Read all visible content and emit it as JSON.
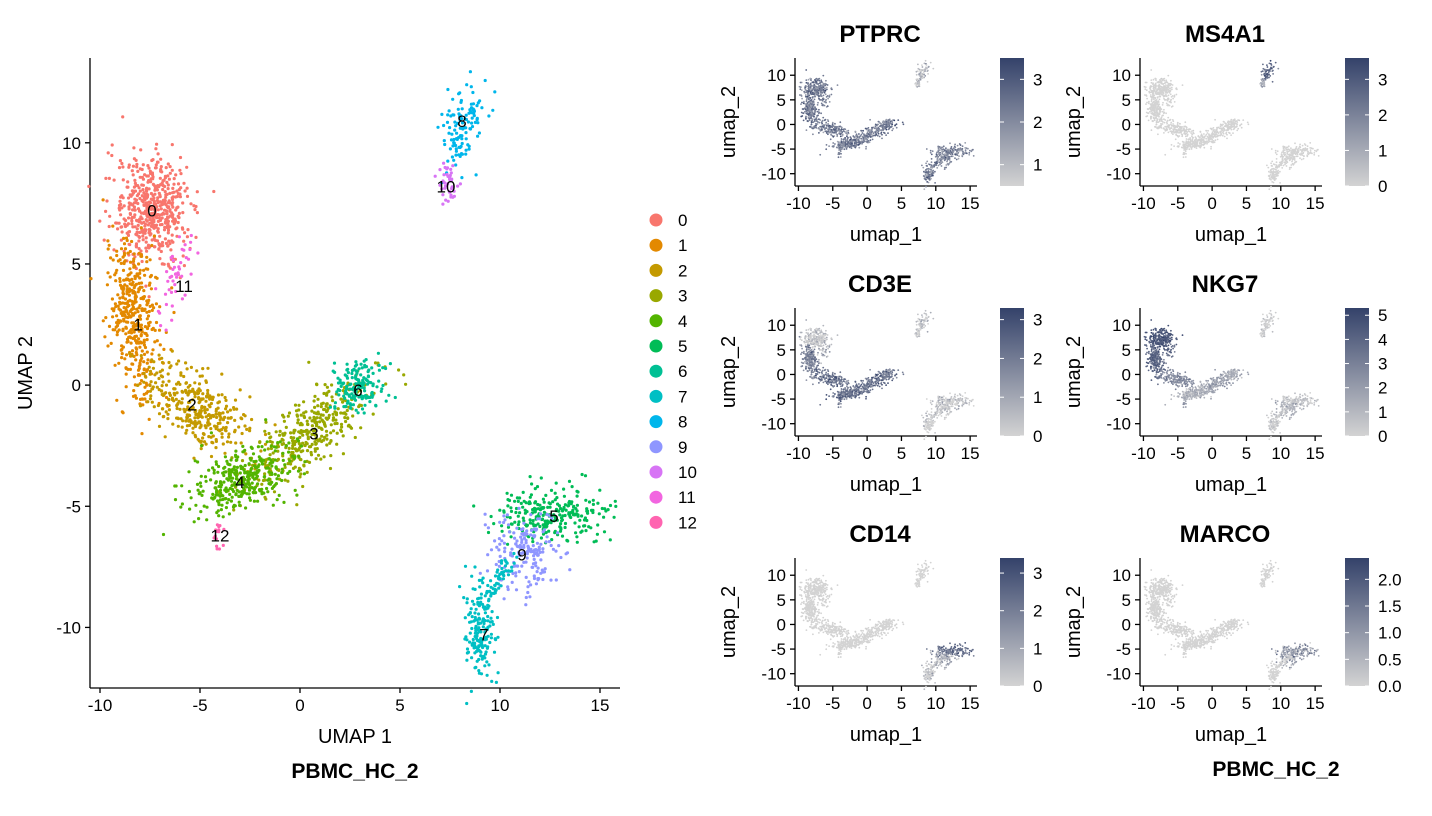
{
  "colors": {
    "low": "#d3d3d3",
    "high": "#34426a",
    "clusters": [
      "#f8766d",
      "#e38900",
      "#c49a00",
      "#99a800",
      "#53b400",
      "#00bc56",
      "#00c094",
      "#00bfc4",
      "#00b6eb",
      "#8f96ff",
      "#d774f5",
      "#f265e0",
      "#ff64b0"
    ]
  },
  "chart_data": [
    {
      "type": "scatter",
      "title": "",
      "caption": "PBMC_HC_2",
      "xlabel": "UMAP 1",
      "ylabel": "UMAP 2",
      "xlim": [
        -10.5,
        16
      ],
      "ylim": [
        -12.5,
        13.5
      ],
      "xticks": [
        -10,
        -5,
        0,
        5,
        10,
        15
      ],
      "yticks": [
        -10,
        -5,
        0,
        5,
        10
      ],
      "xtick_labels": [
        "-10",
        "-5",
        "0",
        "5",
        "10",
        "15"
      ],
      "ytick_labels": [
        "-10",
        "-5",
        "0",
        "5",
        "10"
      ],
      "legend": {
        "position": "right",
        "entries": [
          "0",
          "1",
          "2",
          "3",
          "4",
          "5",
          "6",
          "7",
          "8",
          "9",
          "10",
          "11",
          "12"
        ]
      },
      "series": [
        {
          "name": "0",
          "label_xy": [
            -7.4,
            7.2
          ]
        },
        {
          "name": "1",
          "label_xy": [
            -8.1,
            2.5
          ]
        },
        {
          "name": "2",
          "label_xy": [
            -5.4,
            -0.8
          ]
        },
        {
          "name": "3",
          "label_xy": [
            0.7,
            -2.0
          ]
        },
        {
          "name": "4",
          "label_xy": [
            -3.0,
            -4.0
          ]
        },
        {
          "name": "5",
          "label_xy": [
            12.7,
            -5.4
          ]
        },
        {
          "name": "6",
          "label_xy": [
            2.9,
            -0.2
          ]
        },
        {
          "name": "7",
          "label_xy": [
            9.2,
            -10.3
          ]
        },
        {
          "name": "8",
          "label_xy": [
            8.1,
            10.9
          ]
        },
        {
          "name": "9",
          "label_xy": [
            11.1,
            -7.0
          ]
        },
        {
          "name": "10",
          "label_xy": [
            7.3,
            8.2
          ]
        },
        {
          "name": "11",
          "label_xy": [
            -5.8,
            4.1
          ]
        },
        {
          "name": "12",
          "label_xy": [
            -4.0,
            -6.2
          ]
        }
      ]
    },
    {
      "type": "scatter",
      "title": "PTPRC",
      "xlabel": "umap_1",
      "ylabel": "umap_2",
      "xlim": [
        -10.5,
        16
      ],
      "ylim": [
        -12.5,
        13.5
      ],
      "xtick_labels": [
        "-10",
        "-5",
        "0",
        "5",
        "10",
        "15"
      ],
      "ytick_labels": [
        "-10",
        "-5",
        "0",
        "5",
        "10"
      ],
      "colorbar": {
        "min": 0.5,
        "max": 3.5,
        "ticks": [
          1,
          2,
          3
        ],
        "tick_labels": [
          "1",
          "2",
          "3"
        ]
      },
      "expression_by_cluster": [
        2.3,
        2.3,
        2.3,
        2.3,
        2.3,
        2.1,
        2.3,
        2.2,
        1.0,
        2.1,
        1.0,
        2.3,
        2.3
      ]
    },
    {
      "type": "scatter",
      "title": "MS4A1",
      "xlabel": "umap_1",
      "ylabel": "umap_2",
      "xlim": [
        -10.5,
        16
      ],
      "ylim": [
        -12.5,
        13.5
      ],
      "xtick_labels": [
        "-10",
        "-5",
        "0",
        "5",
        "10",
        "15"
      ],
      "ytick_labels": [
        "-10",
        "-5",
        "0",
        "5",
        "10"
      ],
      "colorbar": {
        "min": 0,
        "max": 3.6,
        "ticks": [
          0,
          1,
          2,
          3
        ],
        "tick_labels": [
          "0",
          "1",
          "2",
          "3"
        ]
      },
      "expression_by_cluster": [
        0,
        0,
        0,
        0,
        0,
        0,
        0,
        0,
        2.8,
        0,
        1.2,
        0,
        0
      ]
    },
    {
      "type": "scatter",
      "title": "CD3E",
      "xlabel": "umap_1",
      "ylabel": "umap_2",
      "xlim": [
        -10.5,
        16
      ],
      "ylim": [
        -12.5,
        13.5
      ],
      "xtick_labels": [
        "-10",
        "-5",
        "0",
        "5",
        "10",
        "15"
      ],
      "ytick_labels": [
        "-10",
        "-5",
        "0",
        "5",
        "10"
      ],
      "colorbar": {
        "min": 0,
        "max": 3.3,
        "ticks": [
          0,
          1,
          2,
          3
        ],
        "tick_labels": [
          "0",
          "1",
          "2",
          "3"
        ]
      },
      "expression_by_cluster": [
        0.3,
        1.8,
        2.2,
        2.2,
        2.2,
        0.2,
        2.0,
        0.1,
        0.4,
        0.2,
        0.2,
        0.8,
        1.5
      ]
    },
    {
      "type": "scatter",
      "title": "NKG7",
      "xlabel": "umap_1",
      "ylabel": "umap_2",
      "xlim": [
        -10.5,
        16
      ],
      "ylim": [
        -12.5,
        13.5
      ],
      "xtick_labels": [
        "-10",
        "-5",
        "0",
        "5",
        "10",
        "15"
      ],
      "ytick_labels": [
        "-10",
        "-5",
        "0",
        "5",
        "10"
      ],
      "colorbar": {
        "min": 0,
        "max": 5.3,
        "ticks": [
          0,
          1,
          2,
          3,
          4,
          5
        ],
        "tick_labels": [
          "0",
          "1",
          "2",
          "3",
          "4",
          "5"
        ]
      },
      "expression_by_cluster": [
        4.6,
        4.0,
        2.6,
        1.8,
        1.2,
        0.5,
        1.4,
        0.3,
        0.2,
        1.2,
        0.4,
        3.5,
        2.0
      ]
    },
    {
      "type": "scatter",
      "title": "CD14",
      "xlabel": "umap_1",
      "ylabel": "umap_2",
      "xlim": [
        -10.5,
        16
      ],
      "ylim": [
        -12.5,
        13.5
      ],
      "xtick_labels": [
        "-10",
        "-5",
        "0",
        "5",
        "10",
        "15"
      ],
      "ytick_labels": [
        "-10",
        "-5",
        "0",
        "5",
        "10"
      ],
      "colorbar": {
        "min": 0,
        "max": 3.4,
        "ticks": [
          0,
          1,
          2,
          3
        ],
        "tick_labels": [
          "0",
          "1",
          "2",
          "3"
        ]
      },
      "expression_by_cluster": [
        0,
        0,
        0,
        0,
        0,
        2.4,
        0,
        0.2,
        0,
        1.0,
        0,
        0,
        0
      ]
    },
    {
      "type": "scatter",
      "title": "MARCO",
      "caption": "PBMC_HC_2",
      "xlabel": "umap_1",
      "ylabel": "umap_2",
      "xlim": [
        -10.5,
        16
      ],
      "ylim": [
        -12.5,
        13.5
      ],
      "xtick_labels": [
        "-10",
        "-5",
        "0",
        "5",
        "10",
        "15"
      ],
      "ytick_labels": [
        "-10",
        "-5",
        "0",
        "5",
        "10"
      ],
      "colorbar": {
        "min": 0,
        "max": 2.4,
        "ticks": [
          0,
          0.5,
          1.0,
          1.5,
          2.0
        ],
        "tick_labels": [
          "0.0",
          "0.5",
          "1.0",
          "1.5",
          "2.0"
        ]
      },
      "expression_by_cluster": [
        0,
        0,
        0,
        0,
        0,
        0.9,
        0,
        0,
        0,
        0.6,
        0,
        0,
        0
      ]
    }
  ]
}
